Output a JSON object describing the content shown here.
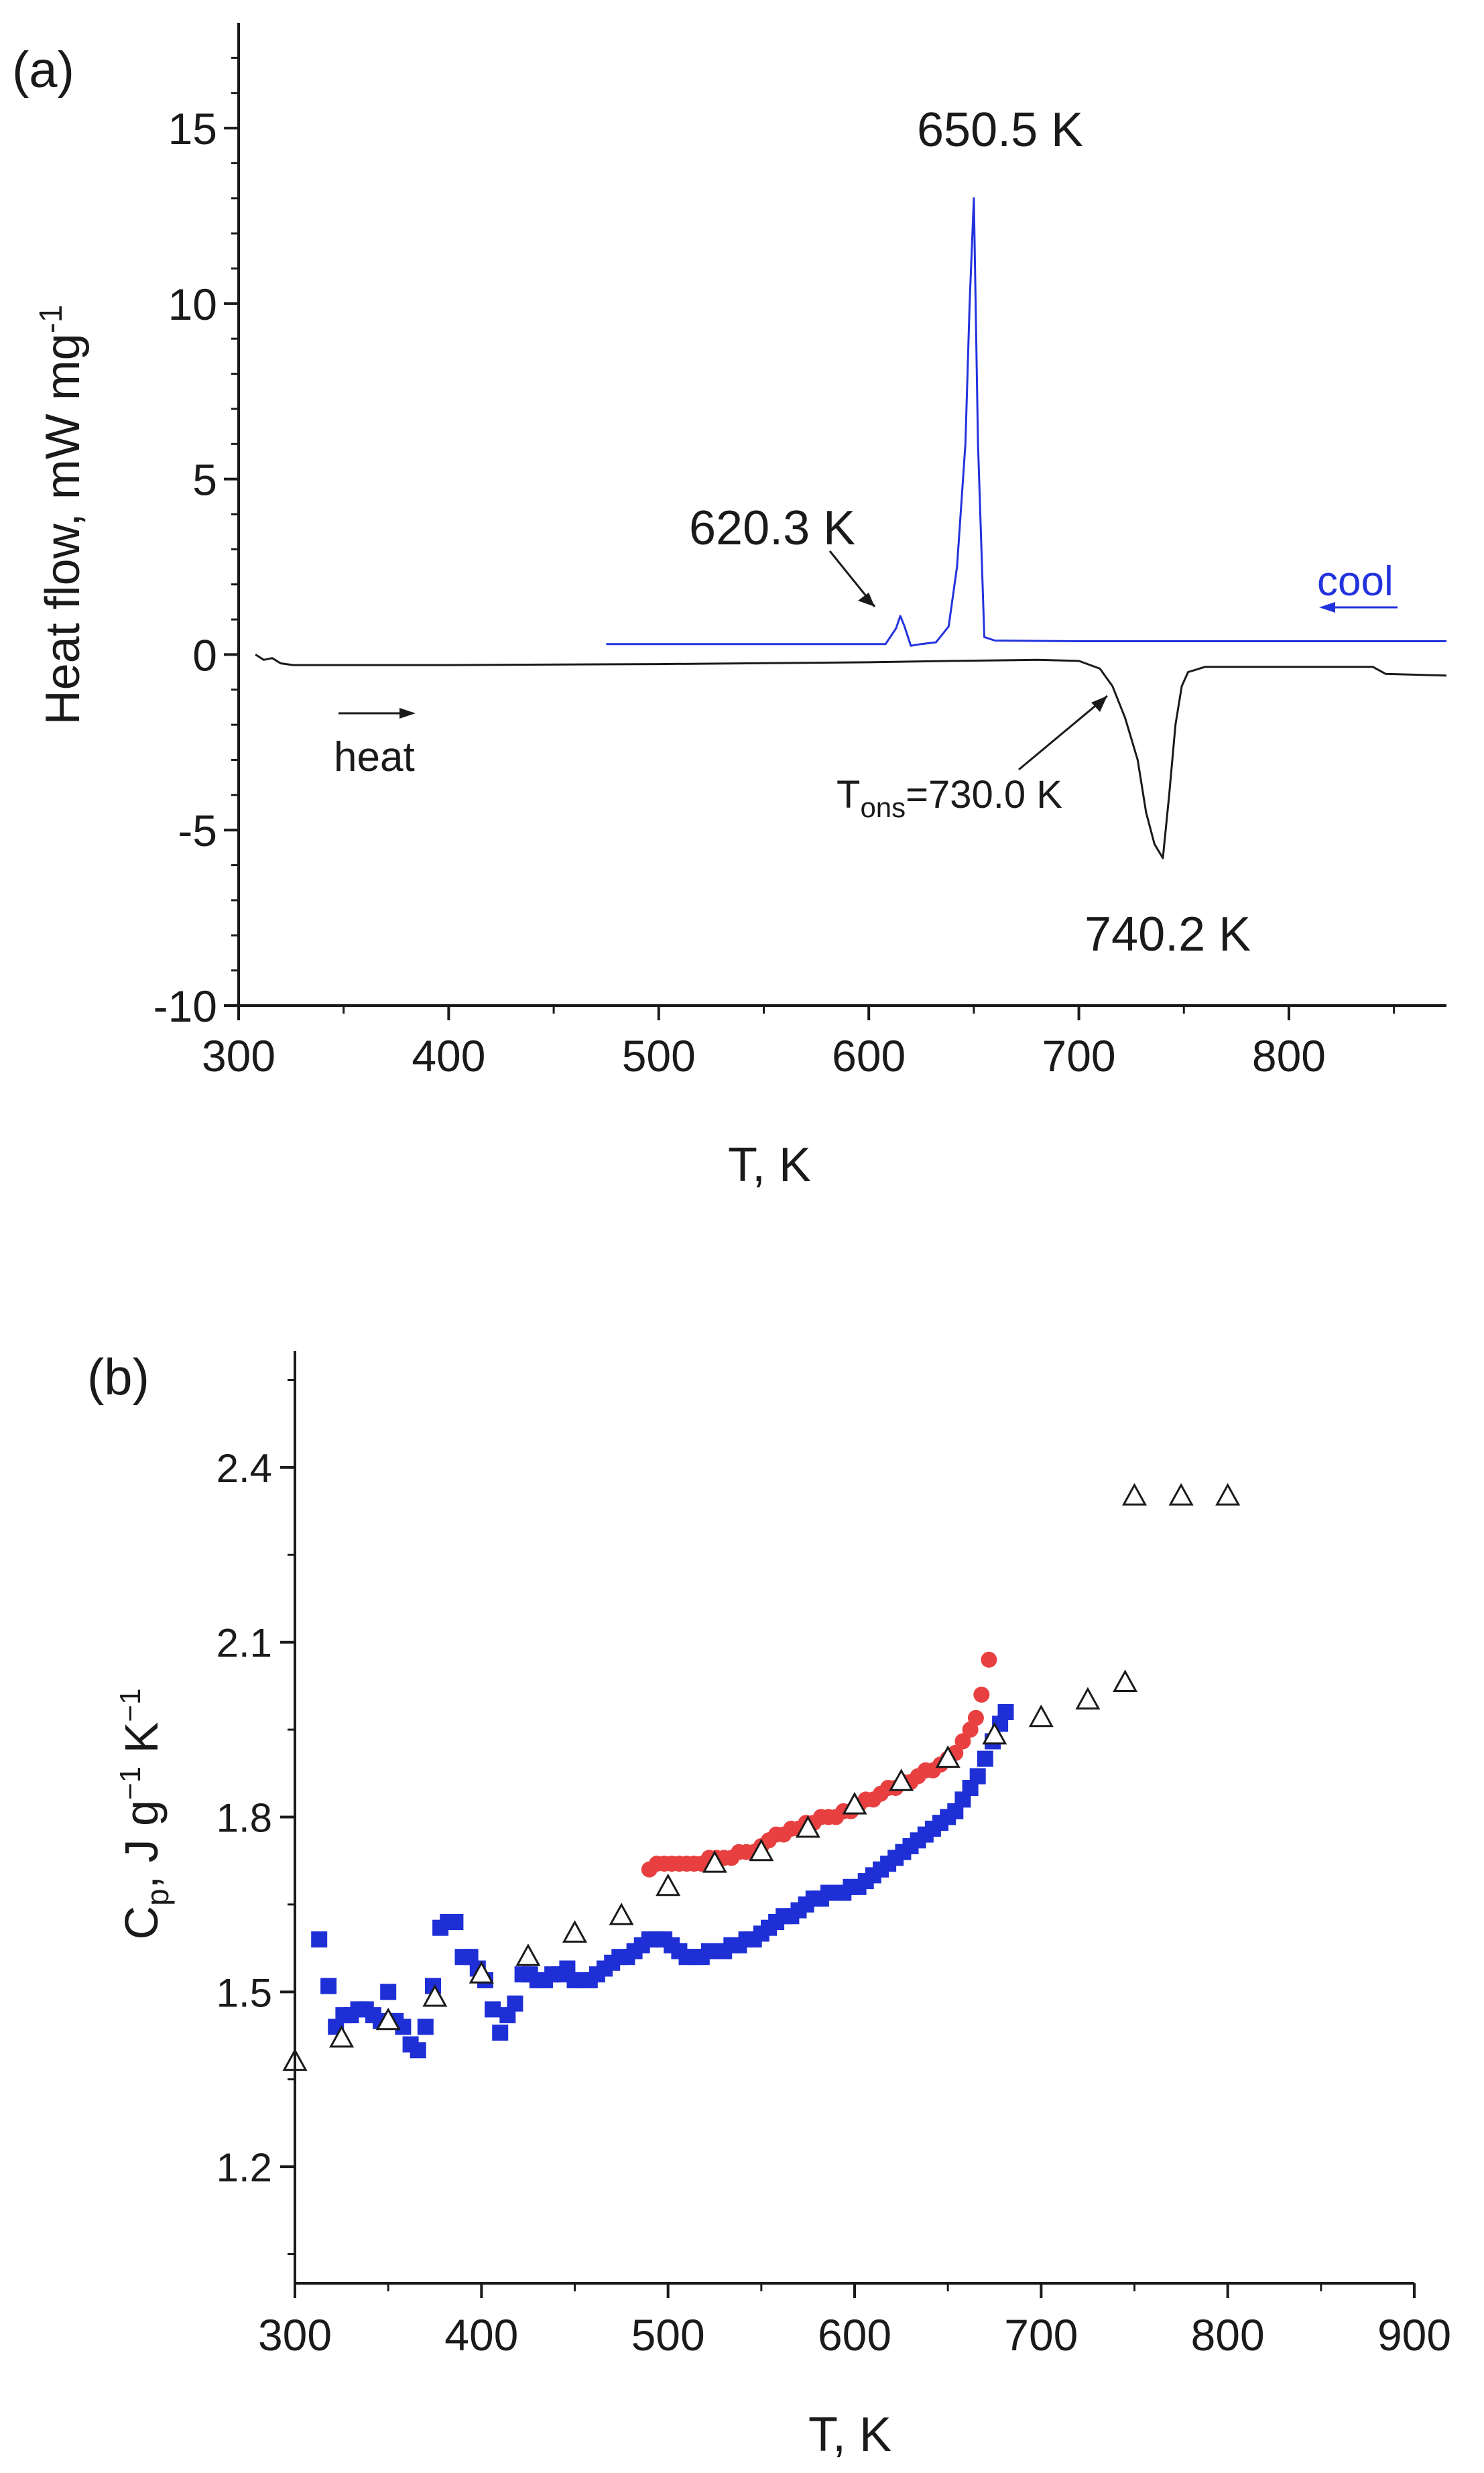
{
  "chart_data": [
    {
      "panel": "a",
      "panel_label": "(a)",
      "type": "line",
      "xlabel": "T, K",
      "ylabel_main": "Heat  flow, mW mg",
      "ylabel_sup": "-1",
      "xlim": [
        300,
        875
      ],
      "ylim": [
        -10,
        18
      ],
      "xticks": [
        300,
        400,
        500,
        600,
        700,
        800
      ],
      "xticklabels": [
        "300",
        "400",
        "500",
        "600",
        "700",
        "800"
      ],
      "yticks": [
        -10,
        -5,
        0,
        5,
        10,
        15
      ],
      "yticklabels": [
        "-10",
        "-5",
        "0",
        "5",
        "10",
        "15"
      ],
      "series": [
        {
          "name": "heat",
          "color": "#1a1a1a",
          "points": [
            [
              308,
              0.0
            ],
            [
              312,
              -0.15
            ],
            [
              316,
              -0.1
            ],
            [
              320,
              -0.25
            ],
            [
              326,
              -0.3
            ],
            [
              400,
              -0.3
            ],
            [
              500,
              -0.27
            ],
            [
              600,
              -0.22
            ],
            [
              640,
              -0.18
            ],
            [
              680,
              -0.15
            ],
            [
              700,
              -0.18
            ],
            [
              710,
              -0.4
            ],
            [
              716,
              -0.9
            ],
            [
              722,
              -1.8
            ],
            [
              728,
              -3.0
            ],
            [
              732,
              -4.5
            ],
            [
              736,
              -5.4
            ],
            [
              740,
              -5.8
            ],
            [
              743,
              -4.0
            ],
            [
              746,
              -2.0
            ],
            [
              749,
              -0.9
            ],
            [
              752,
              -0.5
            ],
            [
              760,
              -0.35
            ],
            [
              800,
              -0.35
            ],
            [
              840,
              -0.35
            ],
            [
              846,
              -0.55
            ],
            [
              875,
              -0.6
            ]
          ]
        },
        {
          "name": "cool",
          "color": "#2233dd",
          "points": [
            [
              475,
              0.3
            ],
            [
              560,
              0.3
            ],
            [
              600,
              0.3
            ],
            [
              608,
              0.3
            ],
            [
              613,
              0.75
            ],
            [
              615,
              1.1
            ],
            [
              617,
              0.8
            ],
            [
              620,
              0.25
            ],
            [
              625,
              0.3
            ],
            [
              632,
              0.35
            ],
            [
              638,
              0.8
            ],
            [
              642,
              2.5
            ],
            [
              646,
              6.0
            ],
            [
              648,
              10.0
            ],
            [
              650,
              13.0
            ],
            [
              652,
              6.0
            ],
            [
              655,
              0.5
            ],
            [
              660,
              0.4
            ],
            [
              700,
              0.38
            ],
            [
              800,
              0.38
            ],
            [
              875,
              0.38
            ]
          ]
        }
      ],
      "annotations": {
        "peak_cool_high": "650.5 K",
        "peak_cool_low": "620.3 K",
        "peak_heat": "740.2 K",
        "onset_prefix": "T",
        "onset_sub": "ons",
        "onset_value": "=730.0 K",
        "heat_label": "heat",
        "cool_label": "cool"
      }
    },
    {
      "panel": "b",
      "panel_label": "(b)",
      "type": "scatter",
      "xlabel": "T, K",
      "ylabel_parts": [
        "C",
        "p",
        ", J g",
        "−1",
        " K",
        "−1"
      ],
      "xlim": [
        300,
        900
      ],
      "ylim": [
        1.0,
        2.6
      ],
      "xticks": [
        300,
        400,
        500,
        600,
        700,
        800,
        900
      ],
      "xticklabels": [
        "300",
        "400",
        "500",
        "600",
        "700",
        "800",
        "900"
      ],
      "yticks": [
        1.2,
        1.5,
        1.8,
        2.1,
        2.4
      ],
      "yticklabels": [
        "1.2",
        "1.5",
        "1.8",
        "2.1",
        "2.4"
      ],
      "series": [
        {
          "name": "blue squares",
          "marker": "square",
          "color": "#1f2fd6",
          "points": [
            [
              313,
              1.59
            ],
            [
              318,
              1.51
            ],
            [
              322,
              1.44
            ],
            [
              326,
              1.46
            ],
            [
              330,
              1.46
            ],
            [
              334,
              1.47
            ],
            [
              338,
              1.47
            ],
            [
              342,
              1.46
            ],
            [
              346,
              1.45
            ],
            [
              350,
              1.5
            ],
            [
              354,
              1.45
            ],
            [
              358,
              1.44
            ],
            [
              362,
              1.41
            ],
            [
              366,
              1.4
            ],
            [
              370,
              1.44
            ],
            [
              374,
              1.51
            ],
            [
              378,
              1.61
            ],
            [
              382,
              1.62
            ],
            [
              386,
              1.62
            ],
            [
              390,
              1.56
            ],
            [
              394,
              1.56
            ],
            [
              398,
              1.54
            ],
            [
              402,
              1.52
            ],
            [
              406,
              1.47
            ],
            [
              410,
              1.43
            ],
            [
              414,
              1.46
            ],
            [
              418,
              1.48
            ],
            [
              422,
              1.53
            ],
            [
              426,
              1.53
            ],
            [
              430,
              1.52
            ],
            [
              434,
              1.52
            ],
            [
              438,
              1.53
            ],
            [
              442,
              1.53
            ],
            [
              446,
              1.54
            ],
            [
              450,
              1.52
            ],
            [
              454,
              1.52
            ],
            [
              458,
              1.52
            ],
            [
              462,
              1.53
            ],
            [
              466,
              1.54
            ],
            [
              470,
              1.55
            ],
            [
              474,
              1.56
            ],
            [
              478,
              1.56
            ],
            [
              482,
              1.57
            ],
            [
              486,
              1.58
            ],
            [
              490,
              1.59
            ],
            [
              494,
              1.59
            ],
            [
              498,
              1.59
            ],
            [
              502,
              1.58
            ],
            [
              506,
              1.57
            ],
            [
              510,
              1.56
            ],
            [
              514,
              1.56
            ],
            [
              518,
              1.56
            ],
            [
              522,
              1.57
            ],
            [
              526,
              1.57
            ],
            [
              530,
              1.57
            ],
            [
              534,
              1.58
            ],
            [
              538,
              1.58
            ],
            [
              542,
              1.59
            ],
            [
              546,
              1.59
            ],
            [
              550,
              1.6
            ],
            [
              554,
              1.61
            ],
            [
              558,
              1.62
            ],
            [
              562,
              1.63
            ],
            [
              566,
              1.63
            ],
            [
              570,
              1.64
            ],
            [
              574,
              1.65
            ],
            [
              578,
              1.66
            ],
            [
              582,
              1.66
            ],
            [
              586,
              1.67
            ],
            [
              590,
              1.67
            ],
            [
              594,
              1.67
            ],
            [
              598,
              1.68
            ],
            [
              602,
              1.68
            ],
            [
              606,
              1.69
            ],
            [
              610,
              1.7
            ],
            [
              614,
              1.71
            ],
            [
              618,
              1.72
            ],
            [
              622,
              1.73
            ],
            [
              626,
              1.74
            ],
            [
              630,
              1.75
            ],
            [
              634,
              1.76
            ],
            [
              638,
              1.77
            ],
            [
              642,
              1.78
            ],
            [
              646,
              1.79
            ],
            [
              650,
              1.8
            ],
            [
              654,
              1.81
            ],
            [
              658,
              1.83
            ],
            [
              662,
              1.85
            ],
            [
              666,
              1.87
            ],
            [
              670,
              1.9
            ],
            [
              674,
              1.93
            ],
            [
              678,
              1.96
            ],
            [
              681,
              1.98
            ]
          ]
        },
        {
          "name": "red circles",
          "marker": "circle",
          "color": "#e84040",
          "points": [
            [
              490,
              1.71
            ],
            [
              494,
              1.72
            ],
            [
              498,
              1.72
            ],
            [
              502,
              1.72
            ],
            [
              506,
              1.72
            ],
            [
              510,
              1.72
            ],
            [
              514,
              1.72
            ],
            [
              518,
              1.72
            ],
            [
              522,
              1.73
            ],
            [
              526,
              1.73
            ],
            [
              530,
              1.73
            ],
            [
              534,
              1.73
            ],
            [
              538,
              1.74
            ],
            [
              542,
              1.74
            ],
            [
              546,
              1.74
            ],
            [
              550,
              1.75
            ],
            [
              554,
              1.76
            ],
            [
              558,
              1.77
            ],
            [
              562,
              1.77
            ],
            [
              566,
              1.78
            ],
            [
              570,
              1.78
            ],
            [
              574,
              1.79
            ],
            [
              578,
              1.79
            ],
            [
              582,
              1.8
            ],
            [
              586,
              1.8
            ],
            [
              590,
              1.8
            ],
            [
              594,
              1.81
            ],
            [
              598,
              1.81
            ],
            [
              602,
              1.82
            ],
            [
              606,
              1.83
            ],
            [
              610,
              1.83
            ],
            [
              614,
              1.84
            ],
            [
              618,
              1.85
            ],
            [
              622,
              1.85
            ],
            [
              626,
              1.86
            ],
            [
              630,
              1.86
            ],
            [
              634,
              1.87
            ],
            [
              638,
              1.88
            ],
            [
              642,
              1.88
            ],
            [
              646,
              1.89
            ],
            [
              650,
              1.9
            ],
            [
              654,
              1.91
            ],
            [
              658,
              1.93
            ],
            [
              662,
              1.95
            ],
            [
              665,
              1.97
            ],
            [
              668,
              2.01
            ],
            [
              672,
              2.07
            ]
          ]
        },
        {
          "name": "open triangles",
          "marker": "triangle",
          "color": "#1a1a1a",
          "points": [
            [
              300,
              1.38
            ],
            [
              325,
              1.42
            ],
            [
              350,
              1.45
            ],
            [
              375,
              1.49
            ],
            [
              400,
              1.53
            ],
            [
              425,
              1.56
            ],
            [
              450,
              1.6
            ],
            [
              475,
              1.63
            ],
            [
              500,
              1.68
            ],
            [
              525,
              1.72
            ],
            [
              550,
              1.74
            ],
            [
              575,
              1.78
            ],
            [
              600,
              1.82
            ],
            [
              625,
              1.86
            ],
            [
              650,
              1.9
            ],
            [
              675,
              1.94
            ],
            [
              700,
              1.97
            ],
            [
              725,
              2.0
            ],
            [
              745,
              2.03
            ],
            [
              750,
              2.35
            ],
            [
              775,
              2.35
            ],
            [
              800,
              2.35
            ]
          ]
        }
      ]
    }
  ]
}
